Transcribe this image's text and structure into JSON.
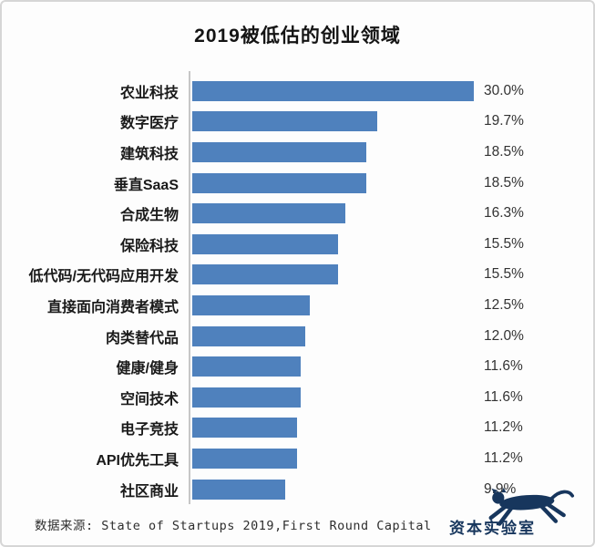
{
  "chart_data": {
    "type": "bar",
    "orientation": "horizontal",
    "title": "2019被低估的创业领域",
    "categories": [
      "农业科技",
      "数字医疗",
      "建筑科技",
      "垂直SaaS",
      "合成生物",
      "保险科技",
      "低代码/无代码应用开发",
      "直接面向消费者模式",
      "肉类替代品",
      "健康/健身",
      "空间技术",
      "电子竞技",
      "API优先工具",
      "社区商业"
    ],
    "values": [
      30.0,
      19.7,
      18.5,
      18.5,
      16.3,
      15.5,
      15.5,
      12.5,
      12.0,
      11.6,
      11.6,
      11.2,
      11.2,
      9.9
    ],
    "value_labels": [
      "30.0%",
      "19.7%",
      "18.5%",
      "18.5%",
      "16.3%",
      "15.5%",
      "15.5%",
      "12.5%",
      "12.0%",
      "11.6%",
      "11.6%",
      "11.2%",
      "11.2%",
      "9.9%"
    ],
    "xlabel": "",
    "ylabel": "",
    "xlim": [
      0,
      30
    ],
    "grid": false,
    "legend": false,
    "data_labels": true,
    "bar_color": "#4f81bd",
    "axis_line_color": "#c6c6c6"
  },
  "footer": {
    "source_label": "数据来源: State of Startups 2019,First Round Capital"
  },
  "logo": {
    "text": "资本实验室",
    "icon": "leaping-leopard-icon",
    "color": "#17365d"
  }
}
